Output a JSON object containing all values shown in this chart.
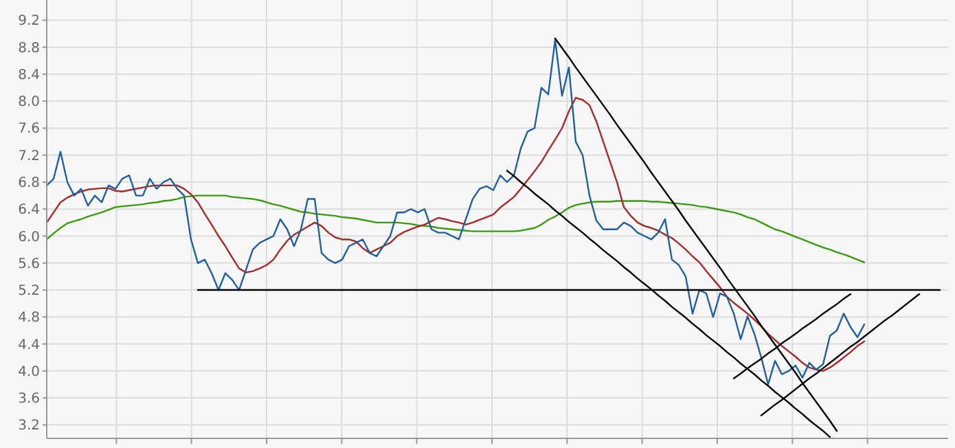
{
  "chart_data": {
    "type": "line",
    "categories": [
      null,
      null,
      null,
      null,
      null,
      null,
      null,
      null,
      null,
      null,
      null,
      null,
      null,
      null,
      null,
      null,
      null,
      null,
      null,
      null,
      null,
      null,
      null,
      null,
      null,
      null,
      null,
      null,
      null,
      null,
      null,
      null,
      null,
      null,
      null,
      null,
      null,
      null,
      null,
      null,
      null,
      null,
      null,
      null,
      null,
      null,
      null,
      null,
      null,
      null,
      null,
      null,
      null,
      null,
      null,
      null,
      null,
      null,
      null,
      null,
      null,
      null,
      null,
      null,
      null,
      null,
      null,
      null,
      null,
      null,
      null,
      null,
      null,
      null,
      null,
      null,
      null,
      null,
      null,
      null,
      null,
      null,
      null,
      null,
      null,
      null,
      null,
      null,
      null,
      null,
      null,
      null,
      null,
      null,
      null,
      null,
      null,
      null,
      null,
      null,
      null,
      null,
      null,
      null,
      null,
      null,
      null,
      null,
      null,
      null,
      null,
      null,
      null,
      null,
      null,
      null,
      null,
      null,
      null,
      null,
      null,
      null,
      null,
      null,
      null,
      null,
      null,
      null,
      null,
      null,
      null,
      null
    ],
    "ylim": [
      3.0,
      9.5
    ],
    "yticks": [
      3.2,
      3.6,
      {
        "value": 4,
        "label": "4.0"
      },
      4.4,
      4.8,
      5.2,
      5.6,
      {
        "value": 6,
        "label": "6.0"
      },
      6.4,
      6.8,
      7.2,
      7.6,
      {
        "value": 8,
        "label": "8.0"
      },
      8.4,
      8.8,
      9.2
    ],
    "grid": true,
    "tick_labels": "y",
    "series": [
      {
        "color": "#3a9a10",
        "values": [
          5.95,
          6.04,
          6.12,
          6.19,
          6.22,
          6.25,
          6.29,
          6.32,
          6.35,
          6.39,
          6.43,
          6.44,
          6.45,
          6.46,
          6.47,
          6.49,
          6.5,
          6.52,
          6.53,
          6.55,
          6.58,
          6.59,
          6.6,
          6.6,
          6.6,
          6.6,
          6.6,
          6.58,
          6.57,
          6.56,
          6.55,
          6.53,
          6.5,
          6.47,
          6.45,
          6.42,
          6.39,
          6.36,
          6.35,
          6.33,
          6.32,
          6.31,
          6.3,
          6.28,
          6.27,
          6.26,
          6.24,
          6.22,
          6.2,
          6.2,
          6.2,
          6.2,
          6.19,
          6.18,
          6.16,
          6.15,
          6.14,
          6.12,
          6.11,
          6.1,
          6.09,
          6.08,
          6.07,
          6.07,
          6.07,
          6.07,
          6.07,
          6.07,
          6.07,
          6.08,
          6.1,
          6.12,
          6.17,
          6.24,
          6.29,
          6.35,
          6.42,
          6.46,
          6.48,
          6.5,
          6.51,
          6.51,
          6.51,
          6.52,
          6.52,
          6.52,
          6.52,
          6.52,
          6.51,
          6.51,
          6.5,
          6.49,
          6.48,
          6.47,
          6.46,
          6.44,
          6.43,
          6.41,
          6.39,
          6.37,
          6.35,
          6.32,
          6.28,
          6.25,
          6.2,
          6.15,
          6.1,
          6.07,
          6.03,
          5.99,
          5.95,
          5.91,
          5.87,
          5.83,
          5.8,
          5.76,
          5.73,
          5.69,
          5.65,
          5.61,
          null,
          null,
          null,
          null,
          null,
          null,
          null,
          null,
          null,
          null,
          null,
          null
        ]
      },
      {
        "color": "#a52a2a",
        "values": [
          6.2,
          6.35,
          6.5,
          6.57,
          6.62,
          6.66,
          6.69,
          6.7,
          6.71,
          6.71,
          6.67,
          6.66,
          6.68,
          6.7,
          6.72,
          6.74,
          6.75,
          6.75,
          6.75,
          6.75,
          6.7,
          6.62,
          6.5,
          6.33,
          6.17,
          6.0,
          5.85,
          5.68,
          5.52,
          5.46,
          5.48,
          5.52,
          5.57,
          5.65,
          5.8,
          5.93,
          6.02,
          6.08,
          6.14,
          6.2,
          6.15,
          6.05,
          5.98,
          5.95,
          5.95,
          5.92,
          5.82,
          5.75,
          5.8,
          5.85,
          5.9,
          6.0,
          6.06,
          6.1,
          6.14,
          6.17,
          6.22,
          6.27,
          6.25,
          6.22,
          6.2,
          6.17,
          6.2,
          6.24,
          6.28,
          6.32,
          6.42,
          6.5,
          6.58,
          6.7,
          6.83,
          6.96,
          7.1,
          7.27,
          7.43,
          7.6,
          7.85,
          8.05,
          8.02,
          7.94,
          7.7,
          7.4,
          7.1,
          6.8,
          6.43,
          6.3,
          6.2,
          6.15,
          6.12,
          6.08,
          6.02,
          5.97,
          5.89,
          5.8,
          5.7,
          5.61,
          5.48,
          5.36,
          5.24,
          5.1,
          5.01,
          4.93,
          4.85,
          4.76,
          4.66,
          4.55,
          4.46,
          4.37,
          4.29,
          4.21,
          4.12,
          4.05,
          4.02,
          4.0,
          4.05,
          4.12,
          4.2,
          4.28,
          4.37,
          4.44,
          null,
          null,
          null,
          null,
          null,
          null,
          null,
          null,
          null,
          null,
          null,
          null
        ]
      },
      {
        "color": "#1f5fa0",
        "values": [
          6.75,
          6.85,
          7.25,
          6.8,
          6.6,
          6.7,
          6.45,
          6.6,
          6.5,
          6.75,
          6.7,
          6.85,
          6.9,
          6.6,
          6.6,
          6.85,
          6.7,
          6.8,
          6.85,
          6.7,
          6.6,
          5.95,
          5.6,
          5.65,
          5.45,
          5.2,
          5.45,
          5.35,
          5.2,
          5.5,
          5.8,
          5.9,
          5.95,
          6.0,
          6.25,
          6.1,
          5.85,
          6.1,
          6.55,
          6.55,
          5.75,
          5.65,
          5.6,
          5.65,
          5.85,
          5.9,
          5.95,
          5.75,
          5.7,
          5.85,
          6.0,
          6.35,
          6.35,
          6.4,
          6.35,
          6.4,
          6.1,
          6.05,
          6.05,
          6.0,
          5.95,
          6.25,
          6.55,
          6.7,
          6.74,
          6.68,
          6.9,
          6.8,
          6.9,
          7.3,
          7.55,
          7.6,
          8.2,
          8.1,
          8.91,
          8.08,
          8.5,
          7.4,
          7.2,
          6.6,
          6.23,
          6.1,
          6.1,
          6.1,
          6.2,
          6.15,
          6.05,
          6.0,
          5.95,
          6.05,
          6.25,
          5.65,
          5.57,
          5.4,
          4.85,
          5.2,
          5.15,
          4.8,
          5.15,
          5.1,
          4.85,
          4.47,
          4.81,
          4.55,
          4.2,
          3.8,
          4.15,
          3.95,
          4.0,
          4.08,
          3.9,
          4.12,
          4.02,
          4.1,
          4.52,
          4.6,
          4.85,
          4.65,
          4.5,
          4.69,
          null,
          null,
          null,
          null,
          null,
          null,
          null,
          null,
          null,
          null,
          null,
          null
        ]
      },
      {
        "color": "#000000",
        "values": [
          null,
          null,
          null,
          null,
          null,
          null,
          null,
          null,
          null,
          null,
          null,
          null,
          null,
          null,
          null,
          null,
          null,
          null,
          null,
          null,
          null,
          null,
          5.2,
          5.2,
          5.2,
          5.2,
          5.2,
          5.2,
          5.2,
          5.2,
          5.2,
          5.2,
          5.2,
          5.2,
          5.2,
          5.2,
          5.2,
          5.2,
          5.2,
          5.2,
          5.2,
          5.2,
          5.2,
          5.2,
          5.2,
          5.2,
          5.2,
          5.2,
          5.2,
          5.2,
          5.2,
          5.2,
          5.2,
          5.2,
          5.2,
          5.2,
          5.2,
          5.2,
          5.2,
          5.2,
          5.2,
          5.2,
          5.2,
          5.2,
          5.2,
          5.2,
          5.2,
          5.2,
          5.2,
          5.2,
          5.2,
          5.2,
          5.2,
          5.2,
          5.2,
          5.2,
          5.2,
          5.2,
          5.2,
          5.2,
          5.2,
          5.2,
          5.2,
          5.2,
          5.2,
          5.2,
          5.2,
          5.2,
          5.2,
          5.2,
          5.2,
          5.2,
          5.2,
          5.2,
          5.2,
          5.2,
          5.2,
          5.2,
          5.2,
          5.2,
          5.2,
          5.2,
          5.2,
          5.2,
          5.2,
          5.2,
          5.2,
          5.2,
          5.2,
          5.2,
          5.2,
          5.2,
          5.2,
          5.2,
          5.2,
          5.2,
          5.2,
          5.2,
          5.2,
          5.2,
          5.2,
          5.2,
          5.2,
          5.2,
          5.2,
          5.2,
          5.2,
          5.2,
          5.2,
          5.2,
          5.2,
          null
        ]
      },
      {
        "color": "#000000",
        "values": [
          null,
          null,
          null,
          null,
          null,
          null,
          null,
          null,
          null,
          null,
          null,
          null,
          null,
          null,
          null,
          null,
          null,
          null,
          null,
          null,
          null,
          null,
          null,
          null,
          null,
          null,
          null,
          null,
          null,
          null,
          null,
          null,
          null,
          null,
          null,
          null,
          null,
          null,
          null,
          null,
          null,
          null,
          null,
          null,
          null,
          null,
          null,
          null,
          null,
          null,
          null,
          null,
          null,
          null,
          null,
          null,
          null,
          null,
          null,
          null,
          null,
          null,
          null,
          null,
          null,
          null,
          null,
          null,
          null,
          null,
          null,
          null,
          null,
          null,
          8.93,
          8.79,
          8.65,
          8.5,
          8.36,
          8.22,
          8.08,
          7.94,
          7.8,
          7.65,
          7.51,
          7.37,
          7.23,
          7.09,
          6.94,
          6.8,
          6.66,
          6.52,
          6.38,
          6.23,
          6.09,
          5.95,
          5.81,
          5.67,
          5.53,
          5.38,
          5.24,
          5.1,
          4.96,
          4.82,
          4.67,
          4.53,
          4.39,
          4.25,
          4.11,
          3.97,
          3.82,
          3.68,
          3.54,
          3.4,
          3.26,
          3.11,
          null,
          null,
          null,
          null,
          null,
          null,
          null,
          null,
          null,
          null,
          null,
          null,
          null,
          null,
          null,
          null
        ]
      },
      {
        "color": "#000000",
        "values": [
          null,
          null,
          null,
          null,
          null,
          null,
          null,
          null,
          null,
          null,
          null,
          null,
          null,
          null,
          null,
          null,
          null,
          null,
          null,
          null,
          null,
          null,
          null,
          null,
          null,
          null,
          null,
          null,
          null,
          null,
          null,
          null,
          null,
          null,
          null,
          null,
          null,
          null,
          null,
          null,
          null,
          null,
          null,
          null,
          null,
          null,
          null,
          null,
          null,
          null,
          null,
          null,
          null,
          null,
          null,
          null,
          null,
          null,
          null,
          null,
          null,
          null,
          null,
          null,
          null,
          null,
          null,
          6.97,
          6.89,
          6.8,
          6.72,
          6.63,
          6.55,
          6.47,
          6.38,
          6.3,
          6.21,
          6.13,
          6.05,
          5.96,
          5.88,
          5.79,
          5.71,
          5.63,
          5.54,
          5.46,
          5.37,
          5.29,
          5.21,
          5.12,
          5.04,
          4.95,
          4.87,
          4.79,
          4.7,
          4.62,
          4.53,
          4.45,
          4.37,
          4.28,
          4.2,
          4.11,
          4.03,
          3.95,
          3.86,
          3.78,
          3.69,
          3.61,
          3.53,
          3.44,
          3.36,
          3.27,
          3.19,
          3.11,
          3.02,
          null,
          null,
          null,
          null,
          null,
          null,
          null,
          null,
          null,
          null,
          null,
          null,
          null,
          null,
          null,
          null,
          null
        ]
      },
      {
        "color": "#000000",
        "values": [
          null,
          null,
          null,
          null,
          null,
          null,
          null,
          null,
          null,
          null,
          null,
          null,
          null,
          null,
          null,
          null,
          null,
          null,
          null,
          null,
          null,
          null,
          null,
          null,
          null,
          null,
          null,
          null,
          null,
          null,
          null,
          null,
          null,
          null,
          null,
          null,
          null,
          null,
          null,
          null,
          null,
          null,
          null,
          null,
          null,
          null,
          null,
          null,
          null,
          null,
          null,
          null,
          null,
          null,
          null,
          null,
          null,
          null,
          null,
          null,
          null,
          null,
          null,
          null,
          null,
          null,
          null,
          null,
          null,
          null,
          null,
          null,
          null,
          null,
          null,
          null,
          null,
          null,
          null,
          null,
          null,
          null,
          null,
          null,
          null,
          null,
          null,
          null,
          null,
          null,
          null,
          null,
          null,
          null,
          null,
          null,
          null,
          null,
          null,
          null,
          3.89,
          3.96,
          4.04,
          4.11,
          4.18,
          4.26,
          4.33,
          4.41,
          4.48,
          4.55,
          4.63,
          4.7,
          4.77,
          4.85,
          4.92,
          4.99,
          5.07,
          5.14,
          null,
          null,
          null,
          null,
          null,
          null,
          null,
          null,
          null,
          null,
          null,
          null,
          null,
          null
        ]
      },
      {
        "color": "#000000",
        "values": [
          null,
          null,
          null,
          null,
          null,
          null,
          null,
          null,
          null,
          null,
          null,
          null,
          null,
          null,
          null,
          null,
          null,
          null,
          null,
          null,
          null,
          null,
          null,
          null,
          null,
          null,
          null,
          null,
          null,
          null,
          null,
          null,
          null,
          null,
          null,
          null,
          null,
          null,
          null,
          null,
          null,
          null,
          null,
          null,
          null,
          null,
          null,
          null,
          null,
          null,
          null,
          null,
          null,
          null,
          null,
          null,
          null,
          null,
          null,
          null,
          null,
          null,
          null,
          null,
          null,
          null,
          null,
          null,
          null,
          null,
          null,
          null,
          null,
          null,
          null,
          null,
          null,
          null,
          null,
          null,
          null,
          null,
          null,
          null,
          null,
          null,
          null,
          null,
          null,
          null,
          null,
          null,
          null,
          null,
          null,
          null,
          null,
          null,
          null,
          null,
          null,
          null,
          null,
          null,
          3.34,
          3.42,
          3.5,
          3.57,
          3.65,
          3.73,
          3.81,
          3.89,
          3.96,
          4.04,
          4.12,
          4.2,
          4.28,
          4.36,
          4.43,
          4.51,
          4.59,
          4.67,
          4.75,
          4.82,
          4.9,
          4.98,
          5.06,
          5.14,
          null,
          null,
          null,
          null
        ]
      }
    ]
  }
}
